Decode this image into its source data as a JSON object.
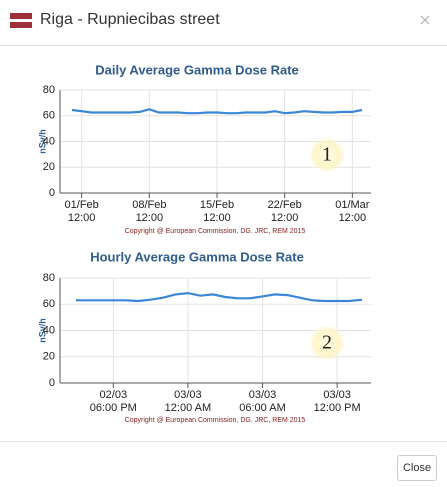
{
  "header": {
    "title": "Riga - Rupniecibas street"
  },
  "chart_data": [
    {
      "type": "line",
      "title": "Daily Average Gamma Dose Rate",
      "y_label": "nSv/h",
      "credit": "Copyright @ European Commission, DG. JRC, REM 2015",
      "annotation": "1",
      "categories": [
        null,
        "01/Feb 12:00",
        null,
        null,
        null,
        null,
        null,
        null,
        "08/Feb 12:00",
        null,
        null,
        null,
        null,
        null,
        null,
        "15/Feb 12:00",
        null,
        null,
        null,
        null,
        null,
        null,
        "22/Feb 12:00",
        null,
        null,
        null,
        null,
        null,
        null,
        "01/Mar 12:00",
        null
      ],
      "values": [
        64.5,
        63.5,
        62.5,
        62.5,
        62.5,
        62.5,
        62.5,
        63,
        65,
        62.5,
        62.5,
        62.5,
        62,
        62,
        62.5,
        62.5,
        62,
        62,
        62.5,
        62.5,
        62.5,
        63.5,
        62,
        62.5,
        63.5,
        63,
        62.5,
        62.5,
        63,
        63,
        64.5
      ],
      "color": "#3b86d8",
      "ylim": [
        0,
        80
      ],
      "yticks": [
        0,
        20,
        40,
        60,
        80
      ],
      "grid": true
    },
    {
      "type": "line",
      "title": "Hourly Average Gamma Dose Rate",
      "y_label": "nSv/h",
      "credit": "Copyright @ European Commission, DG. JRC, REM 2015",
      "annotation": "2",
      "categories": [
        null,
        null,
        null,
        "02/03 06:00 PM",
        null,
        null,
        null,
        null,
        null,
        "03/03 12:00 AM",
        null,
        null,
        null,
        null,
        null,
        "03/03 06:00 AM",
        null,
        null,
        null,
        null,
        null,
        "03/03 12:00 PM",
        null,
        null
      ],
      "values": [
        63,
        63,
        63,
        63,
        63,
        62.5,
        63.5,
        65,
        67.5,
        68.5,
        66.5,
        67.5,
        65.5,
        64.5,
        64.5,
        66,
        67.5,
        67,
        65,
        63,
        62.5,
        62.5,
        62.5,
        63.5
      ],
      "color": "#3b86d8",
      "ylim": [
        0,
        80
      ],
      "yticks": [
        0,
        20,
        40,
        60,
        80
      ],
      "grid": true
    }
  ],
  "footer": {
    "button": "Close"
  }
}
